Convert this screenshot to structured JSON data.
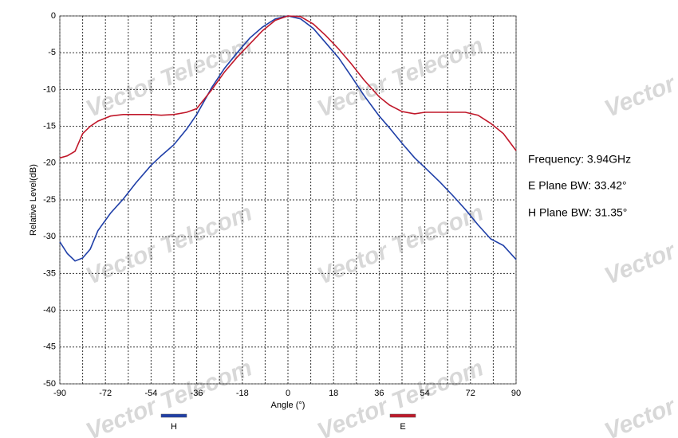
{
  "chart_data": {
    "type": "line",
    "x_label": "Angle (°)",
    "y_label": "Relative Level(dB)",
    "xlim": [
      -90,
      90
    ],
    "ylim": [
      -50,
      0
    ],
    "xticks": [
      -90,
      -72,
      -54,
      -36,
      -18,
      0,
      18,
      36,
      54,
      72,
      90
    ],
    "x_minor_grid": [
      -81,
      -63,
      -45,
      -27,
      -9,
      9,
      27,
      45,
      63,
      81
    ],
    "yticks": [
      0,
      -5,
      -10,
      -15,
      -20,
      -25,
      -30,
      -35,
      -40,
      -45,
      -50
    ],
    "grid": true,
    "annotations": [
      "Frequency: 3.94GHz",
      "E Plane BW: 33.42°",
      "H Plane BW: 31.35°"
    ],
    "watermark": "Vector Telecom",
    "x": [
      -90,
      -87,
      -84,
      -81,
      -78,
      -75,
      -70,
      -65,
      -60,
      -54,
      -50,
      -45,
      -40,
      -36,
      -30,
      -25,
      -20,
      -15,
      -10,
      -5,
      0,
      5,
      10,
      15,
      20,
      25,
      30,
      36,
      40,
      45,
      50,
      54,
      60,
      65,
      70,
      75,
      80,
      85,
      90
    ],
    "series": [
      {
        "name": "H",
        "color": "#1f3fa8",
        "values": [
          -30.7,
          -32.3,
          -33.3,
          -32.9,
          -31.7,
          -29.2,
          -26.8,
          -24.9,
          -22.7,
          -20.3,
          -19,
          -17.5,
          -15.4,
          -13.4,
          -9.7,
          -7.1,
          -5,
          -3,
          -1.5,
          -0.4,
          0,
          -0.4,
          -1.7,
          -3.7,
          -5.7,
          -8.2,
          -10.8,
          -13.6,
          -15.2,
          -17.3,
          -19.3,
          -20.6,
          -22.6,
          -24.4,
          -26.3,
          -28.4,
          -30.3,
          -31.2,
          -33.1
        ]
      },
      {
        "name": "E",
        "color": "#c0182a",
        "values": [
          -19.3,
          -19,
          -18.4,
          -16,
          -15,
          -14.3,
          -13.6,
          -13.4,
          -13.4,
          -13.4,
          -13.5,
          -13.4,
          -13.1,
          -12.6,
          -10,
          -7.6,
          -5.6,
          -3.8,
          -2,
          -0.6,
          0,
          -0.1,
          -1.1,
          -2.7,
          -4.5,
          -6.5,
          -8.7,
          -11,
          -12.1,
          -13,
          -13.3,
          -13.1,
          -13.1,
          -13.1,
          -13.1,
          -13.5,
          -14.6,
          -16,
          -18.3
        ]
      }
    ]
  }
}
